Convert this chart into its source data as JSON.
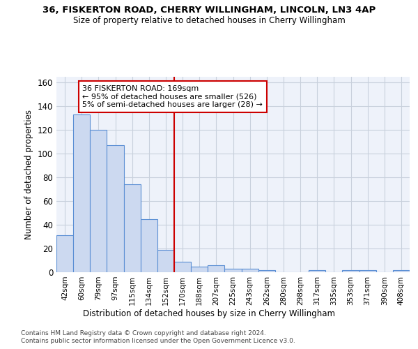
{
  "title_line1": "36, FISKERTON ROAD, CHERRY WILLINGHAM, LINCOLN, LN3 4AP",
  "title_line2": "Size of property relative to detached houses in Cherry Willingham",
  "xlabel": "Distribution of detached houses by size in Cherry Willingham",
  "ylabel": "Number of detached properties",
  "footnote1": "Contains HM Land Registry data © Crown copyright and database right 2024.",
  "footnote2": "Contains public sector information licensed under the Open Government Licence v3.0.",
  "categories": [
    "42sqm",
    "60sqm",
    "79sqm",
    "97sqm",
    "115sqm",
    "134sqm",
    "152sqm",
    "170sqm",
    "188sqm",
    "207sqm",
    "225sqm",
    "243sqm",
    "262sqm",
    "280sqm",
    "298sqm",
    "317sqm",
    "335sqm",
    "353sqm",
    "371sqm",
    "390sqm",
    "408sqm"
  ],
  "bar_heights": [
    31,
    133,
    120,
    107,
    74,
    45,
    19,
    9,
    5,
    6,
    3,
    3,
    2,
    0,
    0,
    2,
    0,
    2,
    2,
    0,
    2
  ],
  "bar_color": "#ccd9f0",
  "bar_edge_color": "#5b8fd4",
  "grid_color": "#c8d0dc",
  "vline_color": "#cc0000",
  "annotation_text": "36 FISKERTON ROAD: 169sqm\n← 95% of detached houses are smaller (526)\n5% of semi-detached houses are larger (28) →",
  "annotation_box_color": "#cc0000",
  "ylim": [
    0,
    165
  ],
  "yticks": [
    0,
    20,
    40,
    60,
    80,
    100,
    120,
    140,
    160
  ],
  "bg_color": "#ffffff",
  "axes_bg_color": "#eef2fa"
}
